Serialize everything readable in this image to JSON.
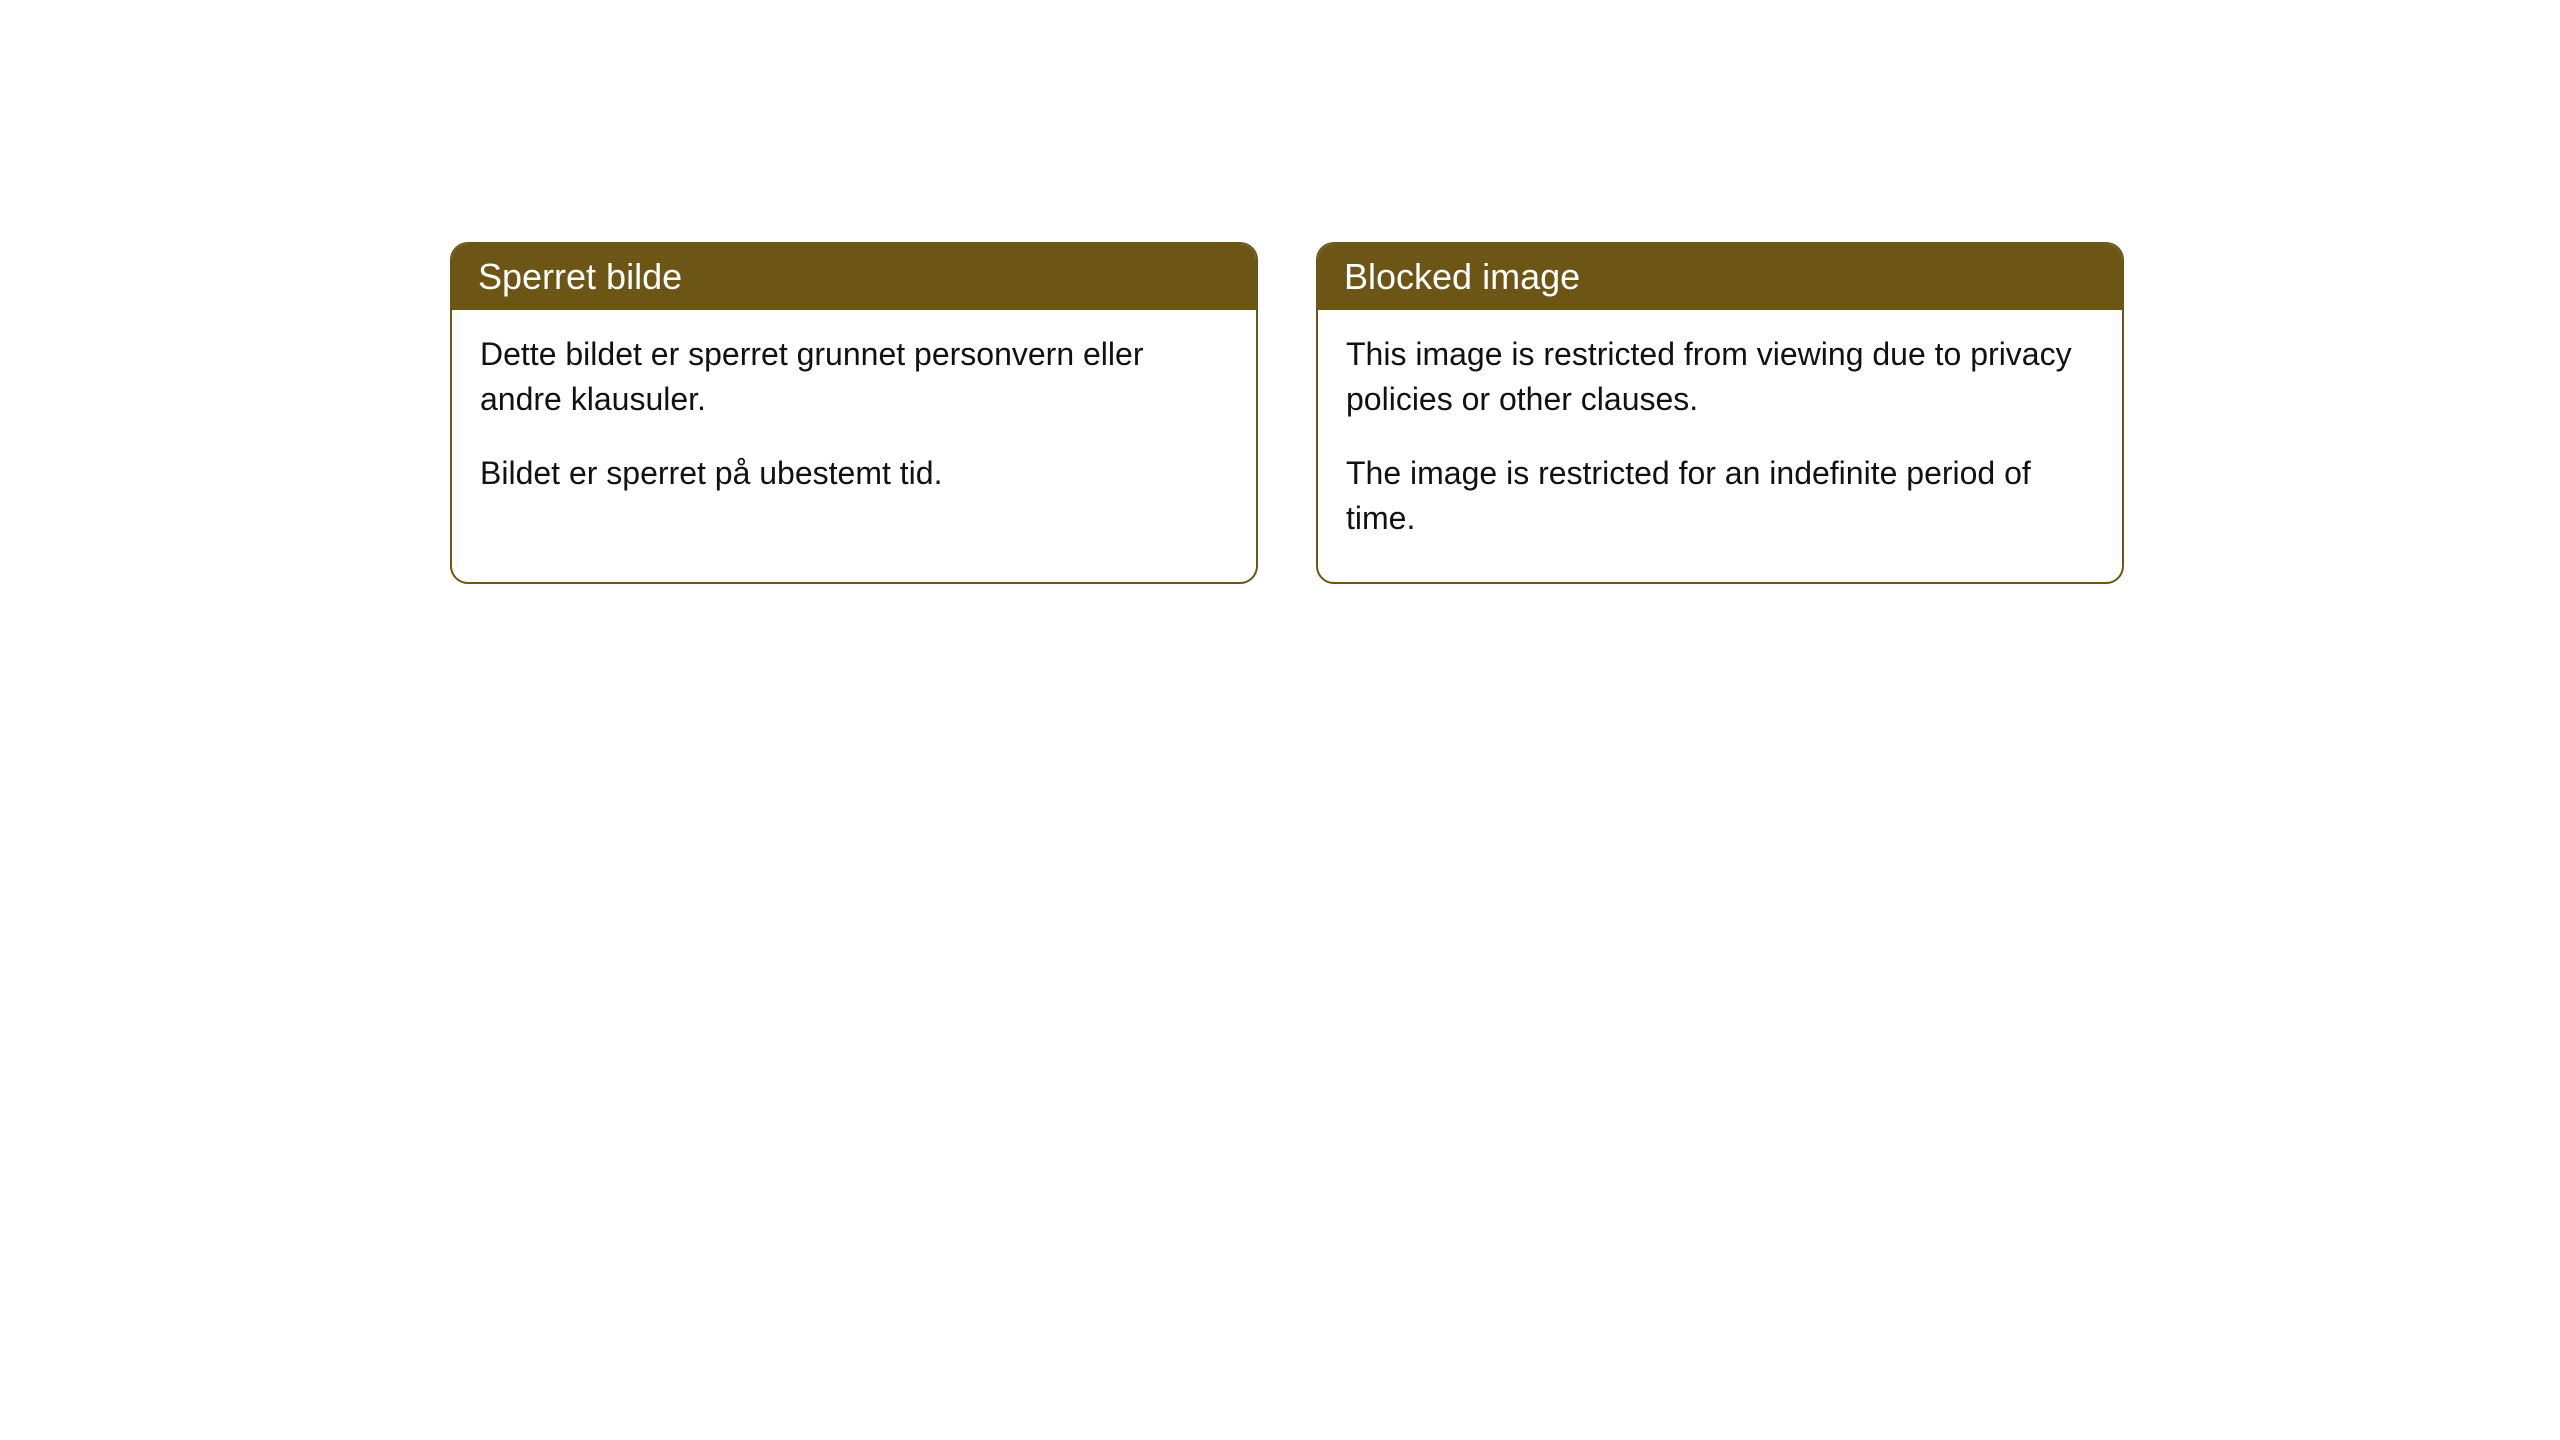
{
  "cards": [
    {
      "header": "Sperret bilde",
      "paragraphs": [
        "Dette bildet er sperret grunnet personvern eller andre klausuler.",
        "Bildet er sperret på ubestemt tid."
      ]
    },
    {
      "header": "Blocked image",
      "paragraphs": [
        "This image is restricted from viewing due to privacy policies or other clauses.",
        "The image is restricted for an indefinite period of time."
      ]
    }
  ],
  "colors": {
    "header_bg": "#6d5515",
    "header_text": "#ffffff",
    "border": "#6d5515",
    "body_text": "#111111",
    "page_bg": "#ffffff"
  }
}
